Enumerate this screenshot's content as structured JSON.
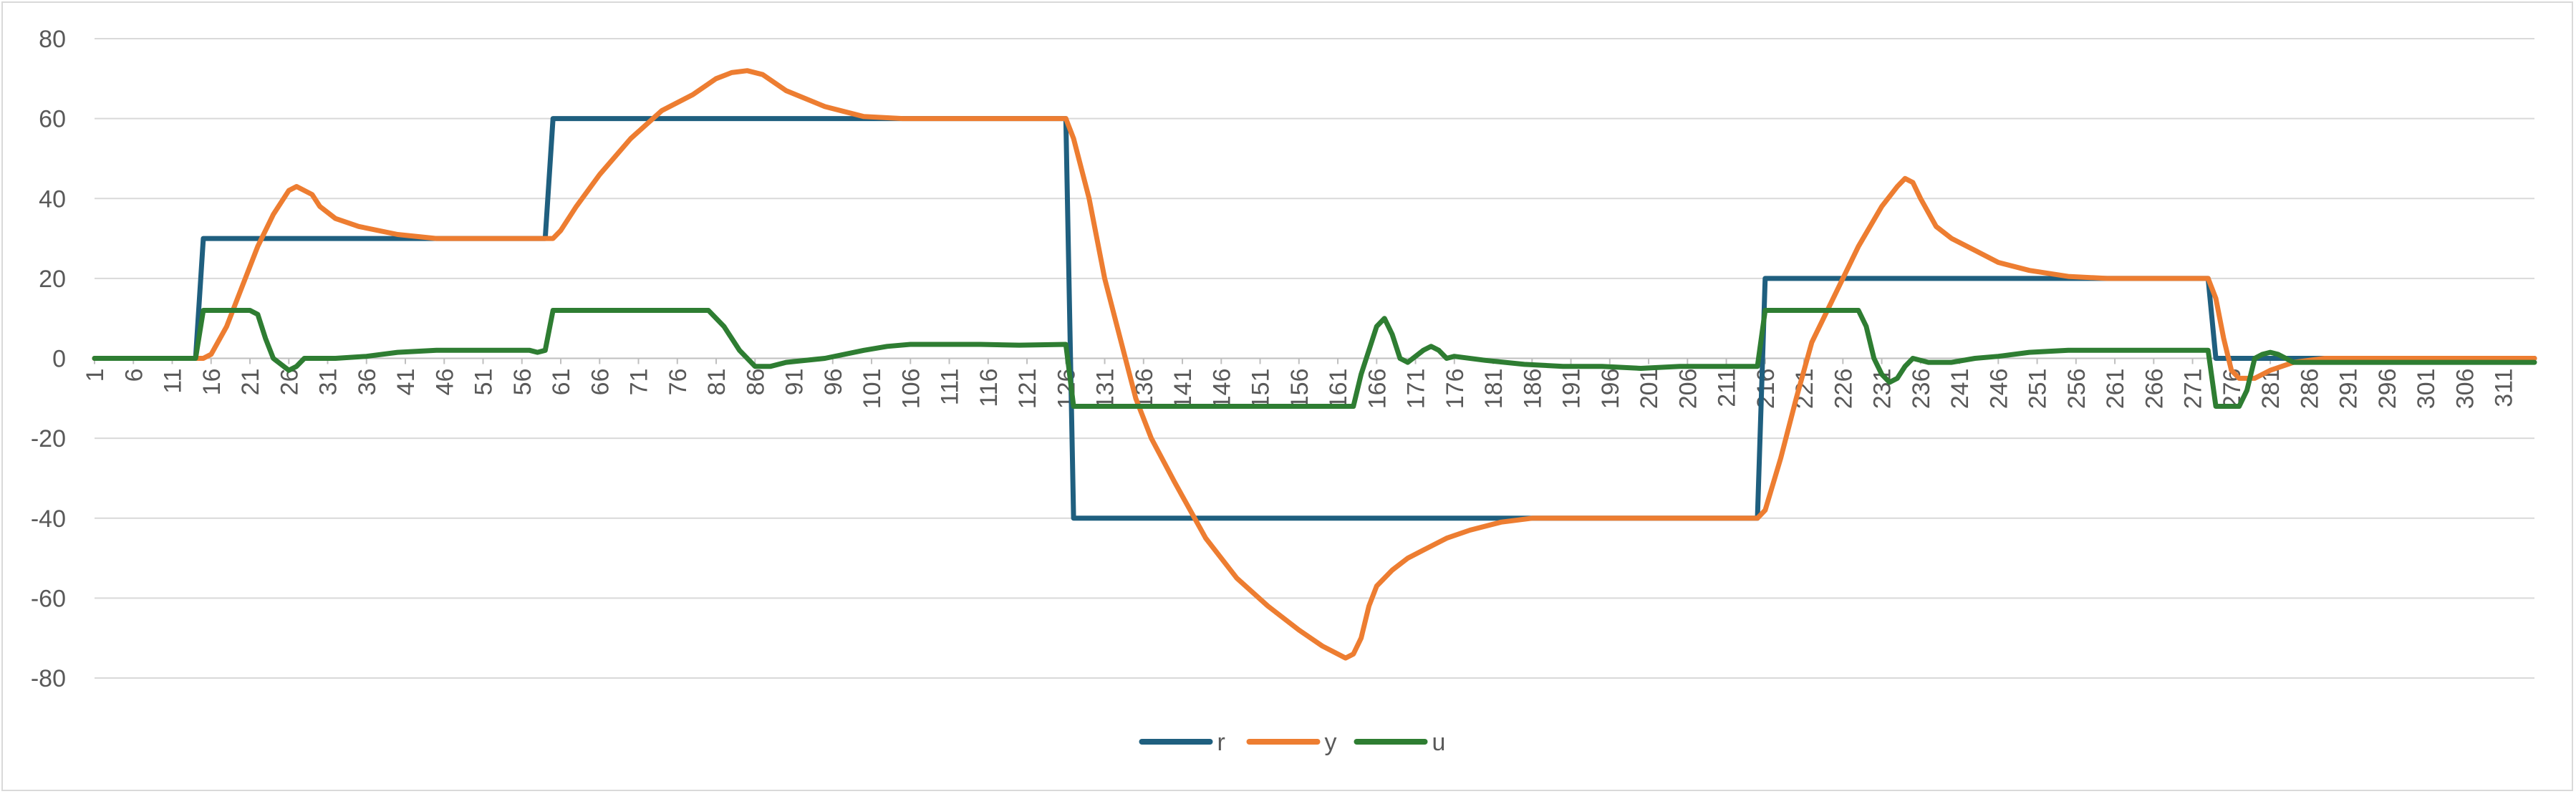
{
  "chart_data": {
    "type": "line",
    "title": "",
    "xlabel": "",
    "ylabel": "",
    "ylim": [
      -80,
      80
    ],
    "y_ticks": [
      80,
      60,
      40,
      20,
      0,
      -20,
      -40,
      -60,
      -80
    ],
    "grid": true,
    "legend_position": "bottom",
    "x_range": [
      1,
      315
    ],
    "x_tick_step": 5,
    "series": [
      {
        "name": "r",
        "color": "#1f5f7f",
        "points": [
          [
            1,
            0
          ],
          [
            14,
            0
          ],
          [
            15,
            30
          ],
          [
            59,
            30
          ],
          [
            60,
            60
          ],
          [
            126,
            60
          ],
          [
            127,
            -40
          ],
          [
            215,
            -40
          ],
          [
            216,
            20
          ],
          [
            273,
            20
          ],
          [
            274,
            0
          ],
          [
            315,
            0
          ]
        ]
      },
      {
        "name": "y",
        "color": "#ed7d31",
        "points": [
          [
            1,
            0
          ],
          [
            15,
            0
          ],
          [
            16,
            1
          ],
          [
            18,
            8
          ],
          [
            20,
            18
          ],
          [
            22,
            28
          ],
          [
            24,
            36
          ],
          [
            26,
            42
          ],
          [
            27,
            43
          ],
          [
            29,
            41
          ],
          [
            30,
            38
          ],
          [
            32,
            35
          ],
          [
            35,
            33
          ],
          [
            40,
            31
          ],
          [
            45,
            30
          ],
          [
            50,
            30
          ],
          [
            59,
            30
          ],
          [
            60,
            30
          ],
          [
            61,
            32
          ],
          [
            63,
            38
          ],
          [
            66,
            46
          ],
          [
            70,
            55
          ],
          [
            74,
            62
          ],
          [
            78,
            66
          ],
          [
            81,
            70
          ],
          [
            83,
            71.5
          ],
          [
            85,
            72
          ],
          [
            87,
            71
          ],
          [
            90,
            67
          ],
          [
            95,
            63
          ],
          [
            100,
            60.5
          ],
          [
            105,
            60
          ],
          [
            115,
            60
          ],
          [
            126,
            60
          ],
          [
            127,
            55
          ],
          [
            129,
            40
          ],
          [
            131,
            20
          ],
          [
            133,
            5
          ],
          [
            135,
            -10
          ],
          [
            137,
            -20
          ],
          [
            140,
            -31
          ],
          [
            144,
            -45
          ],
          [
            148,
            -55
          ],
          [
            152,
            -62
          ],
          [
            156,
            -68
          ],
          [
            159,
            -72
          ],
          [
            161,
            -74
          ],
          [
            162,
            -75
          ],
          [
            163,
            -74
          ],
          [
            164,
            -70
          ],
          [
            165,
            -62
          ],
          [
            166,
            -57
          ],
          [
            168,
            -53
          ],
          [
            170,
            -50
          ],
          [
            172,
            -48
          ],
          [
            175,
            -45
          ],
          [
            178,
            -43
          ],
          [
            182,
            -41
          ],
          [
            186,
            -40
          ],
          [
            190,
            -40
          ],
          [
            200,
            -40
          ],
          [
            215,
            -40
          ],
          [
            216,
            -38
          ],
          [
            218,
            -25
          ],
          [
            220,
            -10
          ],
          [
            222,
            4
          ],
          [
            225,
            16
          ],
          [
            228,
            28
          ],
          [
            231,
            38
          ],
          [
            233,
            43
          ],
          [
            234,
            45
          ],
          [
            235,
            44
          ],
          [
            236,
            40
          ],
          [
            238,
            33
          ],
          [
            240,
            30
          ],
          [
            243,
            27
          ],
          [
            246,
            24
          ],
          [
            250,
            22
          ],
          [
            255,
            20.5
          ],
          [
            260,
            20
          ],
          [
            273,
            20
          ],
          [
            274,
            15
          ],
          [
            275,
            5
          ],
          [
            276,
            -3
          ],
          [
            277,
            -5
          ],
          [
            279,
            -5
          ],
          [
            281,
            -3
          ],
          [
            284,
            -1
          ],
          [
            288,
            0
          ],
          [
            295,
            0
          ],
          [
            315,
            0
          ]
        ]
      },
      {
        "name": "u",
        "color": "#2e7d32",
        "points": [
          [
            1,
            0
          ],
          [
            14,
            0
          ],
          [
            15,
            12
          ],
          [
            21,
            12
          ],
          [
            22,
            11
          ],
          [
            23,
            5
          ],
          [
            24,
            0
          ],
          [
            26,
            -3
          ],
          [
            27,
            -2
          ],
          [
            28,
            0
          ],
          [
            29,
            0
          ],
          [
            32,
            0
          ],
          [
            36,
            0.5
          ],
          [
            40,
            1.5
          ],
          [
            45,
            2
          ],
          [
            50,
            2
          ],
          [
            55,
            2
          ],
          [
            57,
            2
          ],
          [
            58,
            1.5
          ],
          [
            59,
            2
          ],
          [
            60,
            12
          ],
          [
            80,
            12
          ],
          [
            82,
            8
          ],
          [
            84,
            2
          ],
          [
            86,
            -2
          ],
          [
            88,
            -2
          ],
          [
            90,
            -1
          ],
          [
            95,
            0
          ],
          [
            100,
            2
          ],
          [
            103,
            3
          ],
          [
            106,
            3.5
          ],
          [
            110,
            3.5
          ],
          [
            115,
            3.5
          ],
          [
            120,
            3.3
          ],
          [
            126,
            3.5
          ],
          [
            127,
            -12
          ],
          [
            163,
            -12
          ],
          [
            164,
            -4
          ],
          [
            165,
            2
          ],
          [
            166,
            8
          ],
          [
            167,
            10
          ],
          [
            168,
            6
          ],
          [
            169,
            0
          ],
          [
            170,
            -1
          ],
          [
            172,
            2
          ],
          [
            173,
            3
          ],
          [
            174,
            2
          ],
          [
            175,
            0
          ],
          [
            176,
            0.5
          ],
          [
            180,
            -0.5
          ],
          [
            185,
            -1.5
          ],
          [
            190,
            -2
          ],
          [
            195,
            -2
          ],
          [
            200,
            -2.5
          ],
          [
            205,
            -2
          ],
          [
            210,
            -2
          ],
          [
            215,
            -2
          ],
          [
            216,
            12
          ],
          [
            228,
            12
          ],
          [
            229,
            8
          ],
          [
            230,
            0
          ],
          [
            231,
            -4
          ],
          [
            232,
            -6
          ],
          [
            233,
            -5
          ],
          [
            234,
            -2
          ],
          [
            235,
            0
          ],
          [
            237,
            -1
          ],
          [
            240,
            -1
          ],
          [
            243,
            0
          ],
          [
            246,
            0.5
          ],
          [
            250,
            1.5
          ],
          [
            255,
            2
          ],
          [
            260,
            2
          ],
          [
            265,
            2
          ],
          [
            270,
            2
          ],
          [
            273,
            2
          ],
          [
            274,
            -12
          ],
          [
            277,
            -12
          ],
          [
            278,
            -8
          ],
          [
            279,
            0
          ],
          [
            280,
            1
          ],
          [
            281,
            1.5
          ],
          [
            282,
            1
          ],
          [
            284,
            -1
          ],
          [
            287,
            -1
          ],
          [
            290,
            -1
          ],
          [
            295,
            -1
          ],
          [
            300,
            -1
          ],
          [
            305,
            -1
          ],
          [
            310,
            -1
          ],
          [
            315,
            -1
          ]
        ]
      }
    ],
    "legend": [
      "r",
      "y",
      "u"
    ]
  }
}
